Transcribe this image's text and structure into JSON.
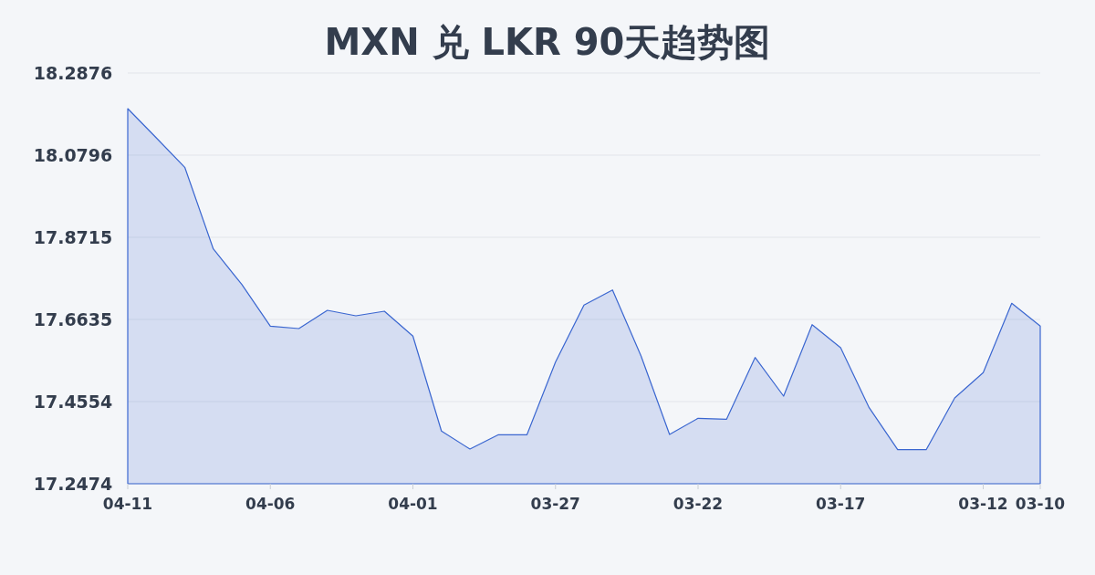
{
  "chart_data": {
    "type": "area",
    "title": "MXN 兑 LKR 90天趋势图",
    "categories": [
      "04-11",
      null,
      null,
      null,
      null,
      "04-06",
      null,
      null,
      null,
      null,
      "04-01",
      null,
      null,
      null,
      null,
      "03-27",
      null,
      null,
      null,
      null,
      "03-22",
      null,
      null,
      null,
      null,
      "03-17",
      null,
      null,
      null,
      null,
      "03-12",
      null,
      "03-10"
    ],
    "values": [
      18.1975,
      18.1235,
      18.0488,
      17.8422,
      17.752,
      17.6466,
      17.6404,
      17.6866,
      17.6727,
      17.6843,
      17.6212,
      17.3808,
      17.3352,
      17.3715,
      17.3715,
      17.5555,
      17.6998,
      17.7382,
      17.571,
      17.3722,
      17.4131,
      17.4108,
      17.5671,
      17.4693,
      17.6503,
      17.5918,
      17.44,
      17.3336,
      17.3336,
      17.4647,
      17.5287,
      17.7044,
      17.6466
    ],
    "color": "#3a66d0",
    "ylim": [
      17.2474,
      18.2876
    ],
    "yticks": [
      17.2474,
      17.4554,
      17.6635,
      17.8715,
      18.0796,
      18.2876
    ],
    "grid": "y"
  }
}
